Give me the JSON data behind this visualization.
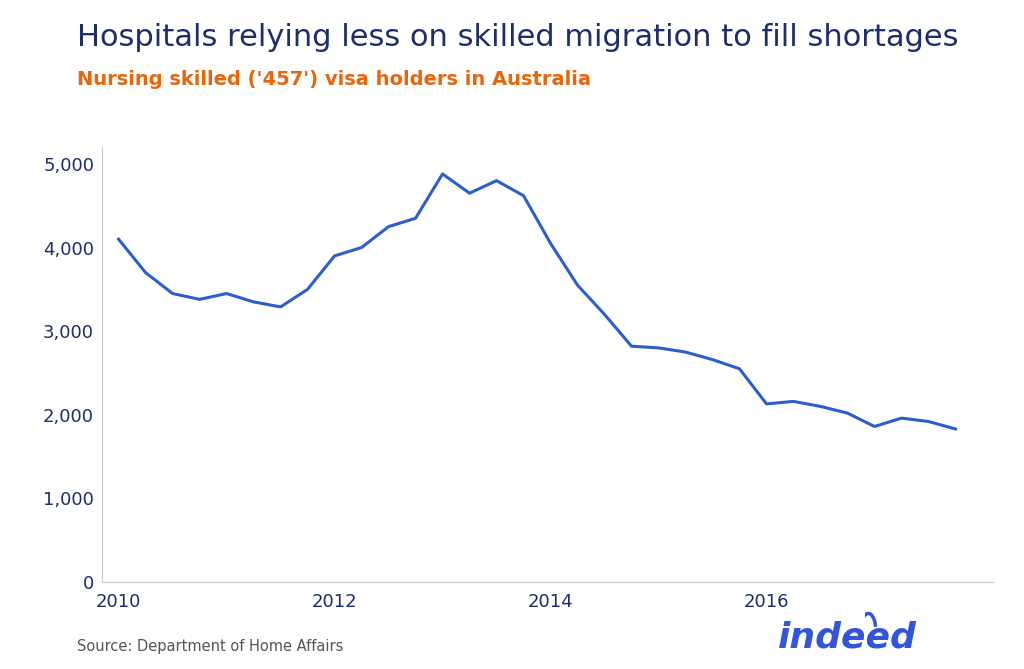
{
  "title": "Hospitals relying less on skilled migration to fill shortages",
  "subtitle": "Nursing skilled ('457') visa holders in Australia",
  "title_color": "#1e2d6b",
  "subtitle_color": "#e8650a",
  "line_color": "#2b5fce",
  "background_color": "#ffffff",
  "x_values": [
    2010.0,
    2010.25,
    2010.5,
    2010.75,
    2011.0,
    2011.25,
    2011.5,
    2011.75,
    2012.0,
    2012.25,
    2012.5,
    2012.75,
    2013.0,
    2013.25,
    2013.5,
    2013.75,
    2014.0,
    2014.25,
    2014.5,
    2014.75,
    2015.0,
    2015.25,
    2015.5,
    2015.75,
    2016.0,
    2016.25,
    2016.5,
    2016.75,
    2017.0,
    2017.25,
    2017.5,
    2017.75
  ],
  "y_values": [
    4100,
    3700,
    3450,
    3380,
    3450,
    3350,
    3290,
    3500,
    3900,
    4000,
    4250,
    4350,
    4880,
    4650,
    4800,
    4620,
    4050,
    3550,
    3200,
    2820,
    2800,
    2750,
    2660,
    2550,
    2130,
    2160,
    2100,
    2020,
    1860,
    1960,
    1920,
    1830
  ],
  "ylim": [
    0,
    5200
  ],
  "yticks": [
    0,
    1000,
    2000,
    3000,
    4000,
    5000
  ],
  "xlim": [
    2009.85,
    2018.1
  ],
  "xticks": [
    2010,
    2012,
    2014,
    2016
  ],
  "tick_label_color": "#1e2d6b",
  "source_text": "Source: Department of Home Affairs",
  "source_color": "#555555",
  "indeed_color": "#3355dd",
  "line_width": 2.2,
  "title_fontsize": 22,
  "subtitle_fontsize": 14,
  "tick_fontsize": 13
}
